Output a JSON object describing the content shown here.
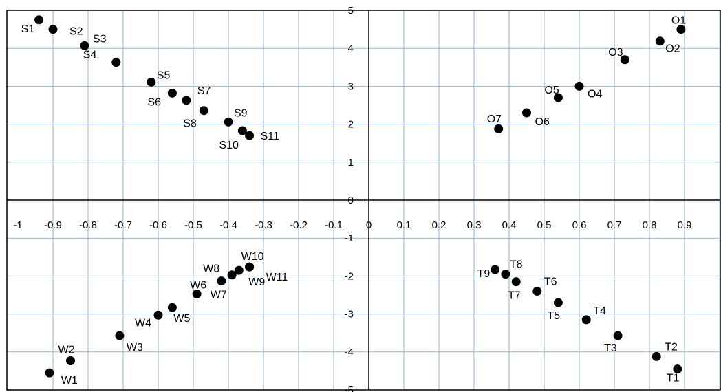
{
  "chart_data": {
    "type": "scatter",
    "title": "",
    "xlabel": "",
    "ylabel": "",
    "xlim": [
      -1,
      1
    ],
    "ylim": [
      -5,
      5
    ],
    "grid": true,
    "legend": "none",
    "colors": {
      "grid": "#93b5d4",
      "axis": "#000000",
      "marker": "#000000"
    },
    "x_ticks": [
      "-1",
      "-0.9",
      "-0.8",
      "-0.7",
      "-0.6",
      "-0.5",
      "-0.4",
      "-0.3",
      "-0.2",
      "-0.1",
      "0",
      "0.1",
      "0.2",
      "0.3",
      "0.4",
      "0.5",
      "0.6",
      "0.7",
      "0.8",
      "0.9"
    ],
    "y_ticks": [
      "-5",
      "-4",
      "-3",
      "-2",
      "-1",
      "0",
      "1",
      "2",
      "3",
      "4",
      "5"
    ],
    "points": [
      {
        "label": "S1",
        "x": -0.94,
        "y": 4.75
      },
      {
        "label": "S2",
        "x": -0.9,
        "y": 4.5
      },
      {
        "label": "S3",
        "x": -0.81,
        "y": 4.07
      },
      {
        "label": "S4",
        "x": -0.72,
        "y": 3.63
      },
      {
        "label": "S5",
        "x": -0.62,
        "y": 3.11
      },
      {
        "label": "S6",
        "x": -0.56,
        "y": 2.82
      },
      {
        "label": "S7",
        "x": -0.52,
        "y": 2.63
      },
      {
        "label": "S8",
        "x": -0.47,
        "y": 2.36
      },
      {
        "label": "S9",
        "x": -0.4,
        "y": 2.06
      },
      {
        "label": "S10",
        "x": -0.36,
        "y": 1.83
      },
      {
        "label": "S11",
        "x": -0.34,
        "y": 1.7
      },
      {
        "label": "O1",
        "x": 0.89,
        "y": 4.5
      },
      {
        "label": "O2",
        "x": 0.83,
        "y": 4.19
      },
      {
        "label": "O3",
        "x": 0.73,
        "y": 3.7
      },
      {
        "label": "O4",
        "x": 0.6,
        "y": 3.0
      },
      {
        "label": "O5",
        "x": 0.54,
        "y": 2.7
      },
      {
        "label": "O6",
        "x": 0.45,
        "y": 2.3
      },
      {
        "label": "O7",
        "x": 0.37,
        "y": 1.88
      },
      {
        "label": "W1",
        "x": -0.91,
        "y": -4.55
      },
      {
        "label": "W2",
        "x": -0.85,
        "y": -4.23
      },
      {
        "label": "W3",
        "x": -0.71,
        "y": -3.57
      },
      {
        "label": "W4",
        "x": -0.6,
        "y": -3.03
      },
      {
        "label": "W5",
        "x": -0.56,
        "y": -2.83
      },
      {
        "label": "W6",
        "x": -0.49,
        "y": -2.47
      },
      {
        "label": "W7",
        "x": -0.42,
        "y": -2.13
      },
      {
        "label": "W8",
        "x": -0.39,
        "y": -1.97
      },
      {
        "label": "W9",
        "x": -0.37,
        "y": -1.85
      },
      {
        "label": "W10",
        "x": -0.34,
        "y": -1.76
      },
      {
        "label": "W11",
        "x": -0.34,
        "y": -1.76
      },
      {
        "label": "T1",
        "x": 0.88,
        "y": -4.45
      },
      {
        "label": "T2",
        "x": 0.82,
        "y": -4.12
      },
      {
        "label": "T3",
        "x": 0.71,
        "y": -3.57
      },
      {
        "label": "T4",
        "x": 0.62,
        "y": -3.15
      },
      {
        "label": "T5",
        "x": 0.54,
        "y": -2.7
      },
      {
        "label": "T6",
        "x": 0.48,
        "y": -2.4
      },
      {
        "label": "T7",
        "x": 0.42,
        "y": -2.15
      },
      {
        "label": "T8",
        "x": 0.39,
        "y": -1.95
      },
      {
        "label": "T9",
        "x": 0.36,
        "y": -1.83
      }
    ]
  }
}
